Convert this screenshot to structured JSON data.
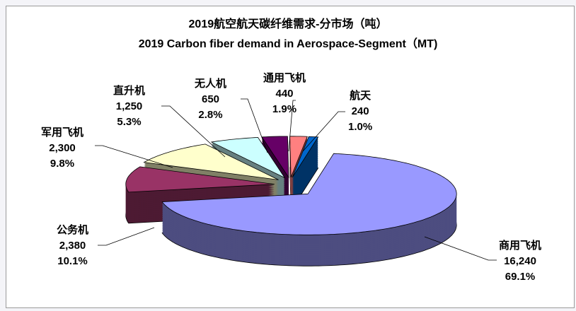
{
  "chart_data": {
    "type": "pie",
    "style": "3d-exploded",
    "title": "2019航空航天碳纤维需求-分市场（吨）",
    "subtitle": "2019 Carbon fiber demand in Aerospace-Segment（MT)",
    "slices": [
      {
        "name": "商用飞机",
        "value": "16,240",
        "v": 16240,
        "percent": "69.1%",
        "color": "#9999FF",
        "side": "#4D4D80"
      },
      {
        "name": "公务机",
        "value": "2,380",
        "v": 2380,
        "percent": "10.1%",
        "color": "#993366",
        "side": "#4D1A33"
      },
      {
        "name": "军用飞机",
        "value": "2,300",
        "v": 2300,
        "percent": "9.8%",
        "color": "#FFFFCC",
        "side": "#808066"
      },
      {
        "name": "直升机",
        "value": "1,250",
        "v": 1250,
        "percent": "5.3%",
        "color": "#CCFFFF",
        "side": "#668080"
      },
      {
        "name": "无人机",
        "value": "650",
        "v": 650,
        "percent": "2.8%",
        "color": "#660066",
        "side": "#330033"
      },
      {
        "name": "通用飞机",
        "value": "440",
        "v": 440,
        "percent": "1.9%",
        "color": "#FF8080",
        "side": "#804040"
      },
      {
        "name": "航天",
        "value": "240",
        "v": 240,
        "percent": "1.0%",
        "color": "#0066CC",
        "side": "#003366"
      }
    ]
  }
}
